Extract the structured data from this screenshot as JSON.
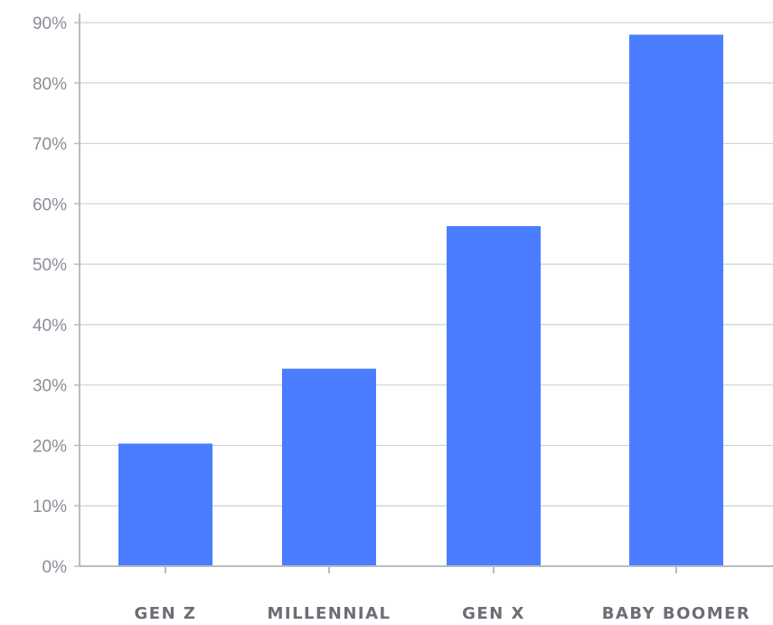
{
  "chart_data": {
    "type": "bar",
    "title": "",
    "xlabel": "",
    "ylabel": "",
    "categories": [
      "GEN Z",
      "MILLENNIAL",
      "GEN X",
      "BABY BOOMER"
    ],
    "values": [
      20.3,
      32.7,
      56.3,
      88.0
    ],
    "ylim": [
      0,
      90
    ],
    "yticks": [
      0,
      10,
      20,
      30,
      40,
      50,
      60,
      70,
      80,
      90
    ],
    "ytick_labels": [
      "0%",
      "10%",
      "20%",
      "30%",
      "40%",
      "50%",
      "60%",
      "70%",
      "80%",
      "90%"
    ],
    "grid": true,
    "legend": "none",
    "colors": {
      "bar": "#4a7dff",
      "grid": "#cfd1d6",
      "axis": "#b9bcc4"
    }
  }
}
